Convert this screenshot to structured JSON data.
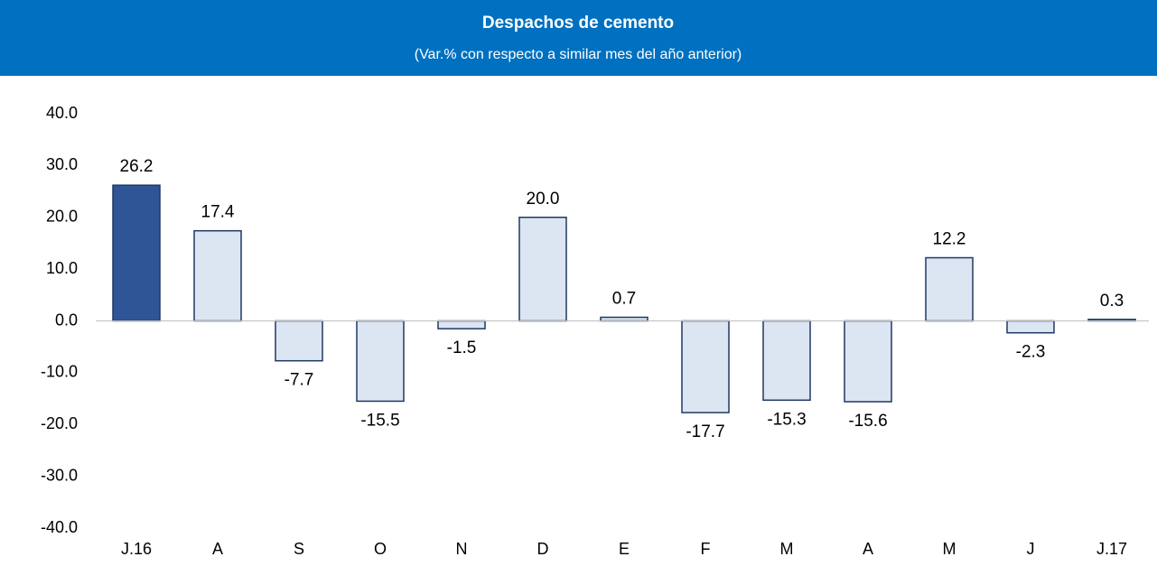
{
  "chart_data": {
    "type": "bar",
    "title": "Despachos de cemento",
    "subtitle": "(Var.% con respecto a similar mes del año anterior)",
    "categories": [
      "J.16",
      "A",
      "S",
      "O",
      "N",
      "D",
      "E",
      "F",
      "M",
      "A",
      "M",
      "J",
      "J.17"
    ],
    "values": [
      26.2,
      17.4,
      -7.7,
      -15.5,
      -1.5,
      20.0,
      0.7,
      -17.7,
      -15.3,
      -15.6,
      12.2,
      -2.3,
      0.3
    ],
    "value_labels": [
      "26.2",
      "17.4",
      "-7.7",
      "-15.5",
      "-1.5",
      "20.0",
      "0.7",
      "-17.7",
      "-15.3",
      "-15.6",
      "12.2",
      "-2.3",
      "0.3"
    ],
    "colors": [
      "#2f5597",
      "#dce6f2",
      "#dce6f2",
      "#dce6f2",
      "#dce6f2",
      "#dce6f2",
      "#dce6f2",
      "#dce6f2",
      "#dce6f2",
      "#dce6f2",
      "#dce6f2",
      "#dce6f2",
      "#dce6f2"
    ],
    "edgecolor": "#1f3864",
    "ylim": [
      -40,
      40
    ],
    "yticks": [
      {
        "value": -40,
        "label": "-40.0"
      },
      {
        "value": -30,
        "label": "-30.0"
      },
      {
        "value": -20,
        "label": "-20.0"
      },
      {
        "value": -10,
        "label": "-10.0"
      },
      {
        "value": 0,
        "label": "0.0"
      },
      {
        "value": 10,
        "label": "10.0"
      },
      {
        "value": 20,
        "label": "20.0"
      },
      {
        "value": 30,
        "label": "30.0"
      },
      {
        "value": 40,
        "label": "40.0"
      }
    ],
    "grid": false
  }
}
